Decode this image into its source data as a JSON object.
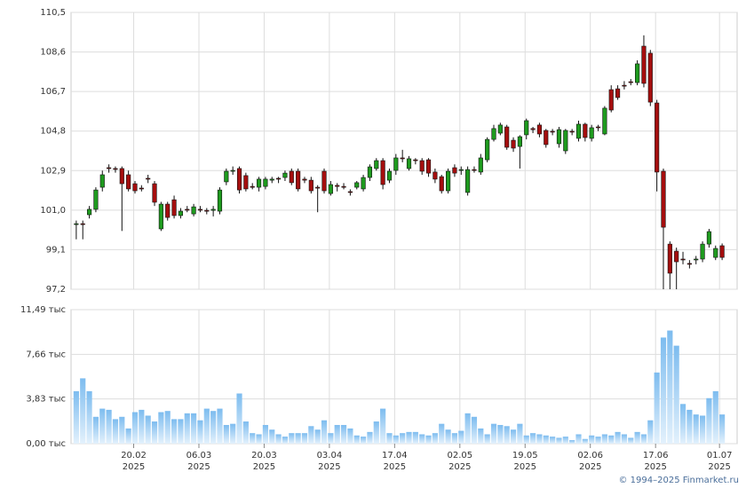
{
  "chart_data": {
    "type": "candlestick",
    "source": "© 1994–2025 Finmarket.ru",
    "up_color": "#1e9b1e",
    "down_color": "#a50e0e",
    "volume_color": "#7dbcef",
    "grid": true,
    "xlim": [
      -0.8,
      101.3
    ],
    "xticks": [
      {
        "value": 8.8,
        "label": "20.02\n2025"
      },
      {
        "value": 18.8,
        "label": "06.03\n2025"
      },
      {
        "value": 28.8,
        "label": "20.03\n2025"
      },
      {
        "value": 38.8,
        "label": "03.04\n2025"
      },
      {
        "value": 48.8,
        "label": "17.04\n2025"
      },
      {
        "value": 58.8,
        "label": "02.05\n2025"
      },
      {
        "value": 68.8,
        "label": "19.05\n2025"
      },
      {
        "value": 78.8,
        "label": "02.06\n2025"
      },
      {
        "value": 88.8,
        "label": "17.06\n2025"
      },
      {
        "value": 98.6,
        "label": "01.07\n2025"
      }
    ],
    "ylim": [
      97.2,
      110.5
    ],
    "yticks": [
      {
        "value": 97.2,
        "label": "97,2"
      },
      {
        "value": 99.1,
        "label": "99,1"
      },
      {
        "value": 101.0,
        "label": "101,0"
      },
      {
        "value": 102.9,
        "label": "102,9"
      },
      {
        "value": 104.8,
        "label": "104,8"
      },
      {
        "value": 106.7,
        "label": "106,7"
      },
      {
        "value": 108.6,
        "label": "108,6"
      },
      {
        "value": 110.5,
        "label": "110,5"
      }
    ],
    "y2lim": [
      0,
      11.49
    ],
    "y2ticks": [
      {
        "value": 0,
        "label": "0,00 тыс"
      },
      {
        "value": 3.83,
        "label": "3,83 тыс"
      },
      {
        "value": 7.66,
        "label": "7,66 тыс"
      },
      {
        "value": 11.49,
        "label": "11,49 тыс"
      }
    ],
    "open": [
      100.31,
      100.35,
      100.78,
      101.04,
      102.1,
      103.04,
      103.0,
      103.0,
      102.7,
      102.27,
      102.06,
      102.53,
      102.27,
      100.1,
      101.29,
      101.5,
      100.74,
      101.04,
      100.82,
      101.04,
      100.99,
      100.99,
      100.95,
      102.36,
      102.87,
      103.0,
      102.66,
      102.14,
      102.1,
      102.14,
      102.44,
      102.53,
      102.57,
      102.87,
      102.87,
      102.49,
      102.44,
      102.1,
      102.87,
      101.8,
      102.19,
      102.14,
      101.89,
      102.1,
      102.02,
      102.57,
      103.0,
      103.38,
      102.44,
      102.91,
      103.51,
      103.0,
      103.42,
      103.38,
      103.42,
      102.83,
      102.61,
      101.93,
      103.04,
      102.91,
      101.85,
      102.95,
      102.83,
      103.42,
      104.4,
      104.7,
      105.0,
      104.36,
      104.06,
      104.62,
      104.92,
      105.09,
      104.83,
      104.79,
      104.19,
      103.85,
      104.79,
      104.45,
      105.13,
      104.45,
      105.0,
      104.66,
      106.79,
      106.83,
      107.0,
      107.17,
      107.13,
      108.88,
      108.54,
      106.15,
      102.87,
      99.37,
      99.03,
      98.65,
      98.44,
      98.61,
      98.65,
      99.37,
      98.73,
      99.29
    ],
    "close": [
      100.35,
      100.31,
      101.04,
      101.97,
      102.7,
      103.0,
      102.96,
      102.27,
      102.02,
      101.93,
      102.02,
      102.49,
      101.38,
      101.29,
      100.65,
      100.74,
      100.95,
      101.0,
      101.16,
      101.0,
      100.95,
      101.04,
      101.97,
      102.87,
      102.91,
      101.97,
      102.02,
      102.1,
      102.49,
      102.49,
      102.49,
      102.49,
      102.78,
      102.32,
      102.02,
      102.44,
      101.93,
      102.06,
      101.93,
      102.23,
      102.14,
      102.1,
      101.85,
      102.32,
      102.57,
      103.08,
      103.38,
      102.23,
      102.87,
      103.51,
      103.47,
      103.47,
      103.38,
      102.87,
      102.78,
      102.49,
      101.93,
      102.87,
      102.78,
      102.95,
      102.95,
      102.91,
      103.51,
      104.4,
      104.92,
      105.09,
      104.02,
      103.98,
      104.53,
      105.3,
      104.87,
      104.66,
      104.15,
      104.75,
      104.87,
      104.83,
      104.75,
      105.13,
      104.49,
      104.96,
      104.96,
      105.9,
      105.81,
      106.41,
      106.96,
      107.13,
      108.03,
      107.09,
      106.19,
      102.83,
      100.18,
      97.97,
      98.52,
      98.61,
      98.4,
      98.65,
      99.37,
      99.97,
      99.16,
      98.73
    ],
    "high": [
      100.5,
      100.5,
      101.2,
      102.1,
      102.9,
      103.2,
      103.1,
      103.1,
      102.9,
      102.4,
      102.2,
      102.7,
      102.4,
      101.4,
      101.4,
      101.7,
      101.1,
      101.2,
      101.3,
      101.2,
      101.1,
      101.2,
      102.1,
      103.0,
      103.1,
      103.1,
      102.8,
      102.3,
      102.6,
      102.6,
      102.6,
      102.6,
      102.9,
      103.0,
      103.0,
      102.6,
      102.6,
      102.2,
      103.0,
      102.4,
      102.3,
      102.3,
      102.0,
      102.4,
      102.7,
      103.2,
      103.5,
      103.5,
      103.0,
      103.7,
      103.9,
      103.6,
      103.5,
      103.5,
      103.5,
      103.0,
      102.7,
      103.0,
      103.2,
      103.1,
      103.1,
      103.1,
      103.7,
      104.5,
      105.1,
      105.2,
      105.1,
      104.5,
      104.6,
      105.4,
      105.0,
      105.2,
      104.9,
      104.9,
      105.0,
      104.9,
      104.9,
      105.3,
      105.2,
      105.1,
      105.1,
      106.0,
      107.0,
      107.0,
      107.2,
      107.3,
      108.2,
      109.4,
      108.7,
      106.3,
      103.0,
      99.5,
      99.2,
      99.0,
      98.6,
      98.8,
      99.5,
      100.1,
      99.3,
      99.4
    ],
    "low": [
      99.6,
      99.6,
      100.6,
      100.9,
      101.9,
      102.8,
      102.8,
      100.0,
      101.9,
      101.8,
      101.9,
      102.3,
      101.2,
      100.0,
      100.5,
      100.6,
      100.6,
      100.9,
      100.7,
      100.9,
      100.8,
      100.7,
      100.8,
      102.2,
      102.7,
      101.8,
      101.9,
      102.0,
      101.9,
      102.0,
      102.3,
      102.3,
      102.4,
      102.2,
      101.9,
      102.3,
      101.8,
      100.9,
      101.8,
      101.7,
      101.9,
      102.0,
      101.7,
      102.0,
      101.9,
      102.4,
      102.9,
      102.0,
      102.3,
      102.7,
      103.3,
      102.9,
      103.2,
      102.7,
      102.6,
      102.3,
      101.8,
      101.8,
      102.6,
      102.7,
      101.7,
      102.8,
      102.7,
      103.3,
      104.3,
      104.6,
      103.9,
      103.8,
      103.0,
      104.4,
      104.7,
      104.5,
      104.0,
      104.6,
      104.0,
      103.7,
      104.6,
      104.3,
      104.3,
      104.3,
      104.8,
      104.6,
      105.7,
      106.3,
      106.8,
      107.0,
      107.0,
      106.9,
      106.0,
      101.9,
      97.2,
      97.2,
      97.2,
      98.4,
      98.2,
      98.4,
      98.5,
      99.2,
      98.6,
      98.6
    ],
    "volume": [
      4.5,
      5.6,
      4.5,
      2.3,
      3.0,
      2.9,
      2.1,
      2.3,
      1.3,
      2.7,
      2.9,
      2.4,
      1.9,
      2.7,
      2.8,
      2.1,
      2.1,
      2.6,
      2.6,
      2.0,
      3.0,
      2.8,
      3.0,
      1.6,
      1.7,
      4.3,
      1.9,
      0.9,
      0.8,
      1.6,
      1.2,
      0.8,
      0.6,
      0.9,
      0.9,
      0.9,
      1.5,
      1.2,
      2.0,
      0.9,
      1.6,
      1.6,
      1.3,
      0.7,
      0.6,
      1.0,
      1.9,
      3.0,
      0.9,
      0.7,
      0.9,
      1.0,
      1.0,
      0.8,
      0.7,
      0.9,
      1.7,
      1.2,
      0.9,
      1.1,
      2.6,
      2.3,
      1.3,
      0.8,
      1.7,
      1.6,
      1.5,
      1.2,
      1.7,
      0.7,
      0.9,
      0.8,
      0.7,
      0.6,
      0.5,
      0.6,
      0.3,
      0.8,
      0.4,
      0.7,
      0.6,
      0.8,
      0.7,
      1.0,
      0.8,
      0.5,
      1.0,
      0.8,
      2.0,
      6.1,
      9.1,
      9.7,
      8.4,
      3.4,
      2.9,
      2.5,
      2.4,
      3.9,
      4.5,
      2.5
    ]
  }
}
